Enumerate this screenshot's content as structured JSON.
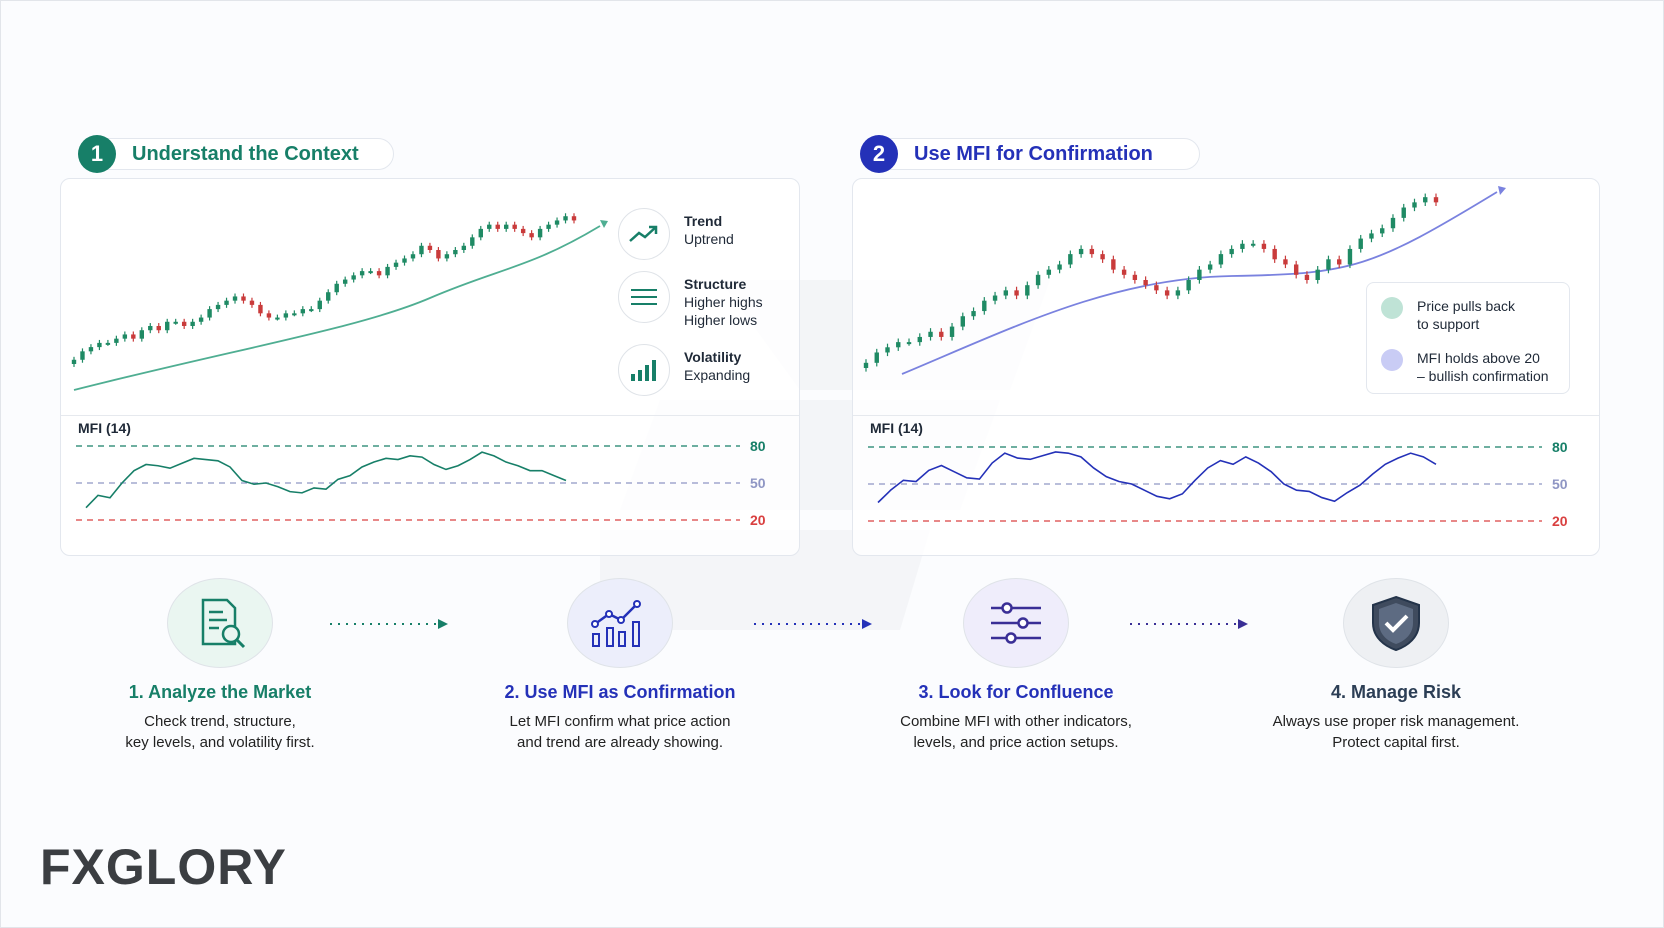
{
  "colors": {
    "green": "#177f68",
    "blue": "#2431b8",
    "red_level": "#d94040",
    "candle_up": "#1f8a64",
    "candle_down": "#c93b3b",
    "logo_accent": "#f07b22"
  },
  "section1": {
    "number": "1",
    "title": "Understand the Context"
  },
  "section2": {
    "number": "2",
    "title": "Use MFI for Confirmation"
  },
  "context_info": [
    {
      "icon": "trend-up-icon",
      "title": "Trend",
      "lines": [
        "Uptrend"
      ]
    },
    {
      "icon": "structure-lines-icon",
      "title": "Structure",
      "lines": [
        "Higher highs",
        "Higher lows"
      ]
    },
    {
      "icon": "volatility-bars-icon",
      "title": "Volatility",
      "lines": [
        "Expanding"
      ]
    }
  ],
  "confirmation_legend": [
    {
      "color": "#bfe3d6",
      "lines": [
        "Price pulls back",
        "to support"
      ]
    },
    {
      "color": "#c9ccf5",
      "lines": [
        "MFI holds above 20",
        "– bullish confirmation"
      ]
    }
  ],
  "chart_data": [
    {
      "type": "candlestick",
      "title": "",
      "trend": "up",
      "close": [
        1,
        3,
        4,
        5,
        5,
        6,
        7,
        6,
        8,
        9,
        8,
        10,
        10,
        9,
        10,
        11,
        13,
        14,
        15,
        16,
        15,
        14,
        12,
        11,
        11,
        12,
        12,
        13,
        13,
        15,
        17,
        19,
        20,
        21,
        22,
        22,
        21,
        23,
        24,
        25,
        26,
        28,
        27,
        25,
        26,
        27,
        28,
        30,
        32,
        33,
        32,
        33,
        32,
        31,
        30,
        32,
        33,
        34,
        35,
        34
      ],
      "mfi_panel": {
        "label": "MFI (14)",
        "levels": [
          80,
          50,
          20
        ],
        "values": [
          30,
          40,
          38,
          50,
          60,
          65,
          64,
          62,
          66,
          70,
          69,
          68,
          63,
          52,
          49,
          50,
          47,
          43,
          42,
          46,
          45,
          53,
          56,
          63,
          67,
          70,
          69,
          72,
          71,
          65,
          61,
          64,
          69,
          75,
          72,
          67,
          64,
          60,
          60,
          56,
          52
        ]
      }
    },
    {
      "type": "candlestick",
      "title": "",
      "trend": "up with pullbacks",
      "close": [
        1,
        3,
        4,
        5,
        5,
        6,
        7,
        6,
        8,
        10,
        11,
        13,
        14,
        15,
        14,
        16,
        18,
        19,
        20,
        22,
        23,
        22,
        21,
        19,
        18,
        17,
        16,
        15,
        14,
        15,
        17,
        19,
        20,
        22,
        23,
        24,
        24,
        23,
        21,
        20,
        18,
        17,
        19,
        21,
        20,
        23,
        25,
        26,
        27,
        29,
        31,
        32,
        33,
        32
      ],
      "mfi_panel": {
        "label": "MFI (14)",
        "levels": [
          80,
          50,
          20
        ],
        "values": [
          35,
          45,
          53,
          52,
          61,
          65,
          60,
          55,
          54,
          67,
          75,
          71,
          70,
          73,
          76,
          75,
          72,
          63,
          56,
          52,
          50,
          45,
          40,
          38,
          42,
          53,
          63,
          69,
          66,
          72,
          67,
          60,
          50,
          45,
          44,
          39,
          36,
          43,
          49,
          58,
          66,
          71,
          75,
          72,
          66
        ]
      }
    }
  ],
  "steps": [
    {
      "icon": "analyze-document-icon",
      "title": "1. Analyze the Market",
      "desc": [
        "Check trend, structure,",
        "key levels, and volatility first."
      ]
    },
    {
      "icon": "chart-confirm-icon",
      "title": "2. Use MFI as Confirmation",
      "desc": [
        "Let MFI confirm what price action",
        "and trend are already showing."
      ]
    },
    {
      "icon": "sliders-icon",
      "title": "3. Look for Confluence",
      "desc": [
        "Combine MFI with other indicators,",
        "levels, and price action setups."
      ]
    },
    {
      "icon": "shield-check-icon",
      "title": "4. Manage Risk",
      "desc": [
        "Always use proper risk management.",
        "Protect capital first."
      ]
    }
  ],
  "logo": {
    "text": "FXGLORY"
  }
}
